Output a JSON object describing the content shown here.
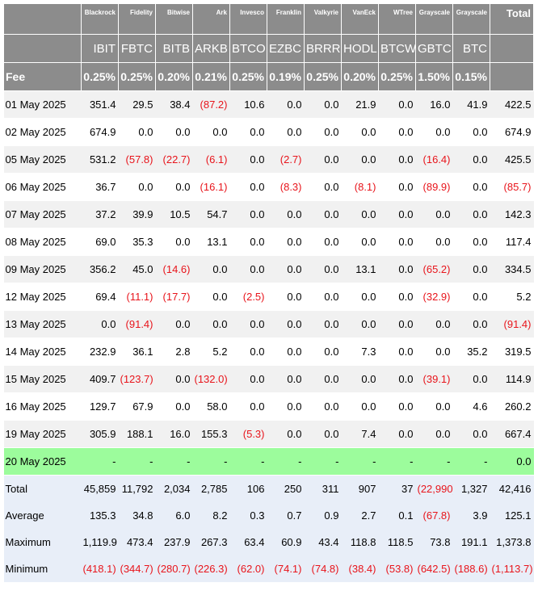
{
  "header": {
    "issuers": [
      "Blackrock",
      "Fidelity",
      "Bitwise",
      "Ark",
      "Invesco",
      "Franklin",
      "Valkyrie",
      "VanEck",
      "WTree",
      "Grayscale",
      "Grayscale"
    ],
    "total_label": "Total",
    "tickers": [
      "IBIT",
      "FBTC",
      "BITB",
      "ARKB",
      "BTCO",
      "EZBC",
      "BRRR",
      "HODL",
      "BTCW",
      "GBTC",
      "BTC"
    ],
    "fee_label": "Fee",
    "fees": [
      "0.25%",
      "0.25%",
      "0.20%",
      "0.21%",
      "0.25%",
      "0.19%",
      "0.25%",
      "0.20%",
      "0.25%",
      "1.50%",
      "0.15%"
    ]
  },
  "rows": [
    {
      "date": "01 May 2025",
      "values": [
        "351.4",
        "29.5",
        "38.4",
        "(87.2)",
        "10.6",
        "0.0",
        "0.0",
        "21.9",
        "0.0",
        "16.0",
        "41.9"
      ],
      "total": "422.5"
    },
    {
      "date": "02 May 2025",
      "values": [
        "674.9",
        "0.0",
        "0.0",
        "0.0",
        "0.0",
        "0.0",
        "0.0",
        "0.0",
        "0.0",
        "0.0",
        "0.0"
      ],
      "total": "674.9"
    },
    {
      "date": "05 May 2025",
      "values": [
        "531.2",
        "(57.8)",
        "(22.7)",
        "(6.1)",
        "0.0",
        "(2.7)",
        "0.0",
        "0.0",
        "0.0",
        "(16.4)",
        "0.0"
      ],
      "total": "425.5"
    },
    {
      "date": "06 May 2025",
      "values": [
        "36.7",
        "0.0",
        "0.0",
        "(16.1)",
        "0.0",
        "(8.3)",
        "0.0",
        "(8.1)",
        "0.0",
        "(89.9)",
        "0.0"
      ],
      "total": "(85.7)"
    },
    {
      "date": "07 May 2025",
      "values": [
        "37.2",
        "39.9",
        "10.5",
        "54.7",
        "0.0",
        "0.0",
        "0.0",
        "0.0",
        "0.0",
        "0.0",
        "0.0"
      ],
      "total": "142.3"
    },
    {
      "date": "08 May 2025",
      "values": [
        "69.0",
        "35.3",
        "0.0",
        "13.1",
        "0.0",
        "0.0",
        "0.0",
        "0.0",
        "0.0",
        "0.0",
        "0.0"
      ],
      "total": "117.4"
    },
    {
      "date": "09 May 2025",
      "values": [
        "356.2",
        "45.0",
        "(14.6)",
        "0.0",
        "0.0",
        "0.0",
        "0.0",
        "13.1",
        "0.0",
        "(65.2)",
        "0.0"
      ],
      "total": "334.5"
    },
    {
      "date": "12 May 2025",
      "values": [
        "69.4",
        "(11.1)",
        "(17.7)",
        "0.0",
        "(2.5)",
        "0.0",
        "0.0",
        "0.0",
        "0.0",
        "(32.9)",
        "0.0"
      ],
      "total": "5.2"
    },
    {
      "date": "13 May 2025",
      "values": [
        "0.0",
        "(91.4)",
        "0.0",
        "0.0",
        "0.0",
        "0.0",
        "0.0",
        "0.0",
        "0.0",
        "0.0",
        "0.0"
      ],
      "total": "(91.4)"
    },
    {
      "date": "14 May 2025",
      "values": [
        "232.9",
        "36.1",
        "2.8",
        "5.2",
        "0.0",
        "0.0",
        "0.0",
        "7.3",
        "0.0",
        "0.0",
        "35.2"
      ],
      "total": "319.5"
    },
    {
      "date": "15 May 2025",
      "values": [
        "409.7",
        "(123.7)",
        "0.0",
        "(132.0)",
        "0.0",
        "0.0",
        "0.0",
        "0.0",
        "0.0",
        "(39.1)",
        "0.0"
      ],
      "total": "114.9"
    },
    {
      "date": "16 May 2025",
      "values": [
        "129.7",
        "67.9",
        "0.0",
        "58.0",
        "0.0",
        "0.0",
        "0.0",
        "0.0",
        "0.0",
        "0.0",
        "4.6"
      ],
      "total": "260.2"
    },
    {
      "date": "19 May 2025",
      "values": [
        "305.9",
        "188.1",
        "16.0",
        "155.3",
        "(5.3)",
        "0.0",
        "0.0",
        "7.4",
        "0.0",
        "0.0",
        "0.0"
      ],
      "total": "667.4"
    },
    {
      "date": "20 May 2025",
      "values": [
        "-",
        "-",
        "-",
        "-",
        "-",
        "-",
        "-",
        "-",
        "-",
        "-",
        "-"
      ],
      "total": "0.0",
      "highlight": true
    }
  ],
  "summary": [
    {
      "label": "Total",
      "values": [
        "45,859",
        "11,792",
        "2,034",
        "2,785",
        "106",
        "250",
        "311",
        "907",
        "37",
        "(22,990)",
        "1,327"
      ],
      "total": "42,416"
    },
    {
      "label": "Average",
      "values": [
        "135.3",
        "34.8",
        "6.0",
        "8.2",
        "0.3",
        "0.7",
        "0.9",
        "2.7",
        "0.1",
        "(67.8)",
        "3.9"
      ],
      "total": "125.1"
    },
    {
      "label": "Maximum",
      "values": [
        "1,119.9",
        "473.4",
        "237.9",
        "267.3",
        "63.4",
        "60.9",
        "43.4",
        "118.8",
        "118.5",
        "73.8",
        "191.1"
      ],
      "total": "1,373.8"
    },
    {
      "label": "Minimum",
      "values": [
        "(418.1)",
        "(344.7)",
        "(280.7)",
        "(226.3)",
        "(62.0)",
        "(74.1)",
        "(74.8)",
        "(38.4)",
        "(53.8)",
        "(642.5)",
        "(188.6)"
      ],
      "total": "(1,113.7)"
    }
  ]
}
